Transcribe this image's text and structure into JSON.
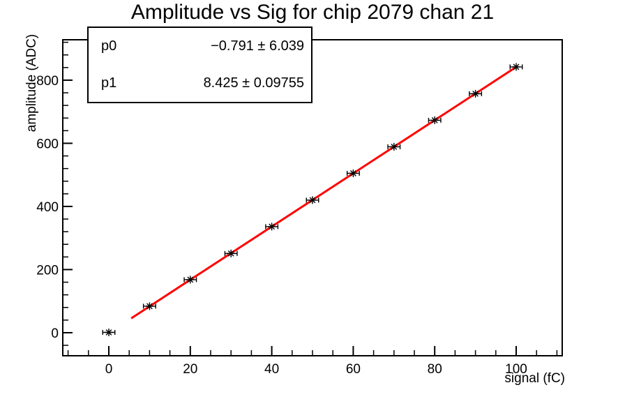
{
  "title": "Amplitude vs Sig for chip 2079 chan 21",
  "stats_box": {
    "rows": [
      {
        "name": "p0",
        "value": "−0.791 ± 6.039"
      },
      {
        "name": "p1",
        "value": "8.425 ± 0.09755"
      }
    ]
  },
  "chart_data": {
    "type": "scatter",
    "title": "Amplitude vs Sig for chip 2079 chan 21",
    "xlabel": "signal (fC)",
    "ylabel": "amplitude (ADC)",
    "xlim": [
      -11.3,
      111.3
    ],
    "ylim": [
      -73,
      928
    ],
    "x": [
      0,
      10,
      20,
      30,
      40,
      50,
      60,
      70,
      80,
      90,
      100
    ],
    "y": [
      1,
      84,
      168,
      251,
      336,
      420,
      505,
      589,
      673,
      757,
      842
    ],
    "x_error": 1.5,
    "marker": "asterisk",
    "marker_color": "#000000",
    "axis_color": "#000000",
    "background": "#ffffff",
    "grid": false,
    "legend": null,
    "fit": {
      "label": "linear",
      "p0": -0.791,
      "p1": 8.425,
      "x_start": 5.5,
      "x_end": 100.3,
      "color": "#ff0000"
    },
    "xaxis": {
      "major_ticks": [
        0,
        20,
        40,
        60,
        80,
        100
      ],
      "minor_step": 5,
      "tick_labels": [
        "0",
        "20",
        "40",
        "60",
        "80",
        "100"
      ]
    },
    "yaxis": {
      "major_ticks": [
        0,
        200,
        400,
        600,
        800
      ],
      "minor_step": 40,
      "tick_labels": [
        "0",
        "200",
        "400",
        "600",
        "800"
      ]
    }
  }
}
